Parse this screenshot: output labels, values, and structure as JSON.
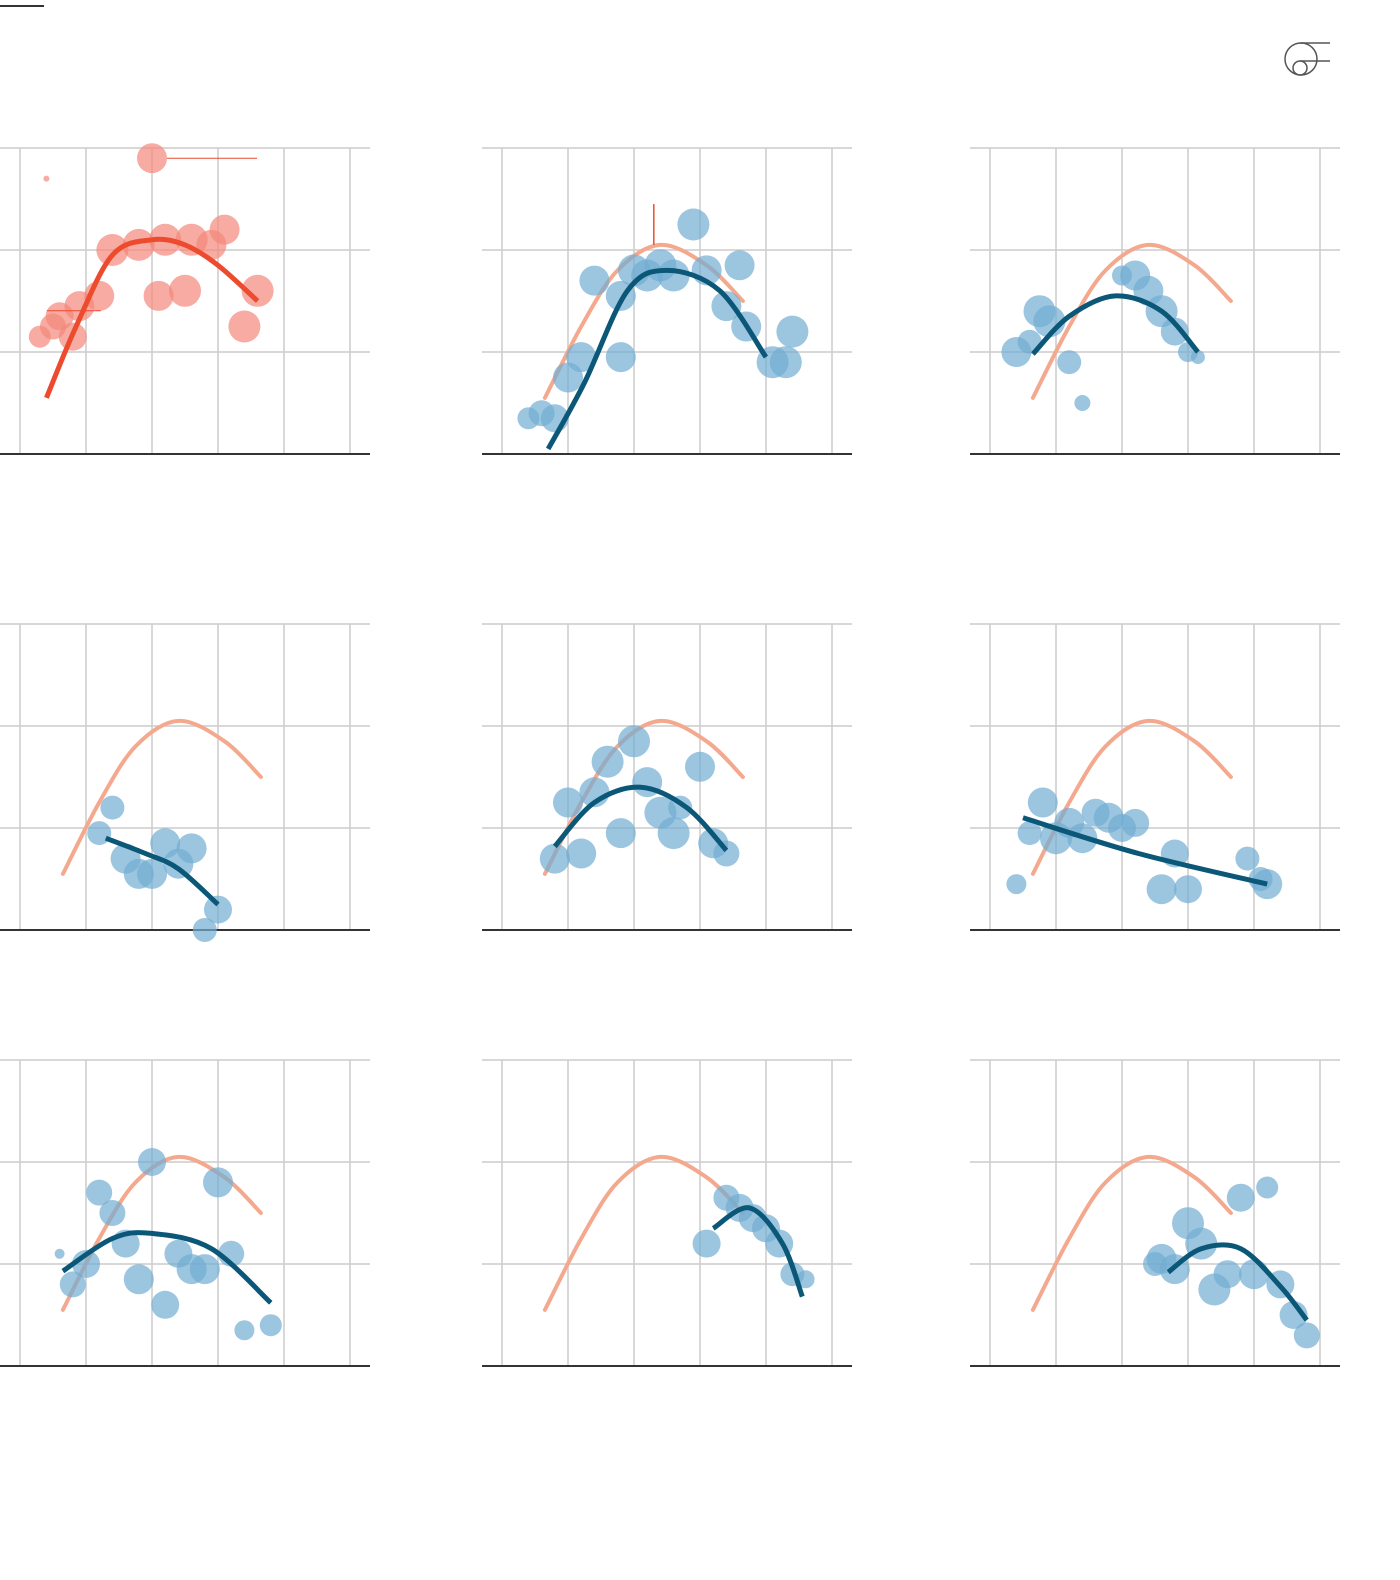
{
  "colors": {
    "background": "#ffffff",
    "grid": "#cccccc",
    "baseline": "#333333",
    "reference_curve": "#f4a98e",
    "reference_curve_dark": "#ec4b2e",
    "reference_points": "#f4877a",
    "series_points": "#72add1",
    "series_curve": "#0b5778",
    "logo_stroke": "#555555"
  },
  "header": {
    "logo_icon": "publisher-logo-icon"
  },
  "chart_data": [
    {
      "type": "scatter",
      "panel": 1,
      "highlight": true,
      "xlim": [
        0,
        10
      ],
      "ylim": [
        0,
        3
      ],
      "grid": true,
      "points": [
        [
          0.8,
          2.7,
          3
        ],
        [
          4.0,
          2.9,
          15
        ],
        [
          1.6,
          1.15,
          14
        ],
        [
          0.6,
          1.15,
          11
        ],
        [
          1.0,
          1.25,
          13
        ],
        [
          1.2,
          1.35,
          14
        ],
        [
          1.8,
          1.45,
          15
        ],
        [
          2.4,
          1.55,
          15
        ],
        [
          2.8,
          2.0,
          16
        ],
        [
          3.6,
          2.05,
          16
        ],
        [
          4.2,
          1.55,
          15
        ],
        [
          4.4,
          2.1,
          16
        ],
        [
          5.0,
          1.6,
          16
        ],
        [
          5.2,
          2.1,
          16
        ],
        [
          5.8,
          2.05,
          15
        ],
        [
          6.2,
          2.2,
          15
        ],
        [
          6.8,
          1.25,
          16
        ],
        [
          7.2,
          1.6,
          16
        ]
      ],
      "fit": [
        [
          0.8,
          0.55
        ],
        [
          1.7,
          1.25
        ],
        [
          2.8,
          1.95
        ],
        [
          4.0,
          2.1
        ],
        [
          5.0,
          2.05
        ],
        [
          6.0,
          1.85
        ],
        [
          7.2,
          1.5
        ]
      ]
    },
    {
      "type": "scatter",
      "panel": 2,
      "xlim": [
        0,
        10
      ],
      "ylim": [
        0,
        3
      ],
      "grid": true,
      "points": [
        [
          0.8,
          0.35,
          11
        ],
        [
          1.2,
          0.4,
          13
        ],
        [
          1.6,
          0.35,
          14
        ],
        [
          2.0,
          0.75,
          15
        ],
        [
          2.4,
          0.95,
          15
        ],
        [
          2.8,
          1.7,
          15
        ],
        [
          3.6,
          0.95,
          15
        ],
        [
          3.6,
          1.55,
          15
        ],
        [
          4.0,
          1.8,
          16
        ],
        [
          4.4,
          1.75,
          16
        ],
        [
          4.8,
          1.85,
          16
        ],
        [
          5.2,
          1.75,
          16
        ],
        [
          5.8,
          2.25,
          16
        ],
        [
          6.2,
          1.8,
          15
        ],
        [
          6.8,
          1.45,
          15
        ],
        [
          7.2,
          1.85,
          15
        ],
        [
          7.4,
          1.25,
          15
        ],
        [
          8.2,
          0.9,
          16
        ],
        [
          8.6,
          0.9,
          16
        ],
        [
          8.8,
          1.2,
          16
        ]
      ],
      "reference": [
        [
          1.3,
          0.55
        ],
        [
          2.4,
          1.25
        ],
        [
          3.5,
          1.8
        ],
        [
          4.8,
          2.05
        ],
        [
          6.2,
          1.85
        ],
        [
          7.3,
          1.5
        ]
      ],
      "fit": [
        [
          1.4,
          0.05
        ],
        [
          2.5,
          0.7
        ],
        [
          3.8,
          1.6
        ],
        [
          5.0,
          1.8
        ],
        [
          6.6,
          1.6
        ],
        [
          8.0,
          0.95
        ]
      ]
    },
    {
      "type": "scatter",
      "panel": 3,
      "xlim": [
        0,
        10
      ],
      "ylim": [
        0,
        3
      ],
      "grid": true,
      "points": [
        [
          0.8,
          1.0,
          15
        ],
        [
          1.2,
          1.1,
          12
        ],
        [
          1.5,
          1.4,
          16
        ],
        [
          1.8,
          1.3,
          16
        ],
        [
          2.4,
          0.9,
          12
        ],
        [
          2.8,
          0.5,
          8
        ],
        [
          4.0,
          1.75,
          10
        ],
        [
          4.4,
          1.75,
          15
        ],
        [
          4.8,
          1.6,
          15
        ],
        [
          5.2,
          1.4,
          16
        ],
        [
          5.6,
          1.2,
          14
        ],
        [
          6.0,
          1.0,
          10
        ],
        [
          6.3,
          0.95,
          7
        ]
      ],
      "reference": [
        [
          1.3,
          0.55
        ],
        [
          2.4,
          1.25
        ],
        [
          3.5,
          1.8
        ],
        [
          4.8,
          2.05
        ],
        [
          6.2,
          1.85
        ],
        [
          7.3,
          1.5
        ]
      ],
      "fit": [
        [
          1.3,
          0.98
        ],
        [
          2.4,
          1.35
        ],
        [
          3.8,
          1.55
        ],
        [
          5.2,
          1.4
        ],
        [
          6.3,
          1.0
        ]
      ]
    },
    {
      "type": "scatter",
      "panel": 4,
      "xlim": [
        0,
        10
      ],
      "ylim": [
        0,
        3
      ],
      "grid": true,
      "points": [
        [
          2.4,
          0.95,
          12
        ],
        [
          2.8,
          1.2,
          12
        ],
        [
          3.2,
          0.7,
          15
        ],
        [
          3.6,
          0.55,
          15
        ],
        [
          4.0,
          0.55,
          15
        ],
        [
          4.4,
          0.85,
          15
        ],
        [
          4.8,
          0.65,
          15
        ],
        [
          5.2,
          0.8,
          15
        ],
        [
          5.6,
          0.0,
          12
        ],
        [
          6.0,
          0.2,
          14
        ]
      ],
      "reference": [
        [
          1.3,
          0.55
        ],
        [
          2.4,
          1.25
        ],
        [
          3.5,
          1.8
        ],
        [
          4.8,
          2.05
        ],
        [
          6.2,
          1.85
        ],
        [
          7.3,
          1.5
        ]
      ],
      "fit": [
        [
          2.6,
          0.9
        ],
        [
          3.8,
          0.75
        ],
        [
          4.8,
          0.6
        ],
        [
          6.0,
          0.25
        ]
      ]
    },
    {
      "type": "scatter",
      "panel": 5,
      "xlim": [
        0,
        10
      ],
      "ylim": [
        0,
        3
      ],
      "grid": true,
      "points": [
        [
          1.6,
          0.7,
          15
        ],
        [
          2.0,
          1.25,
          15
        ],
        [
          2.4,
          0.75,
          15
        ],
        [
          2.8,
          1.35,
          15
        ],
        [
          3.2,
          1.65,
          16
        ],
        [
          3.6,
          0.95,
          15
        ],
        [
          4.0,
          1.85,
          16
        ],
        [
          4.4,
          1.45,
          15
        ],
        [
          4.8,
          1.15,
          16
        ],
        [
          5.2,
          0.95,
          16
        ],
        [
          5.4,
          1.2,
          12
        ],
        [
          6.0,
          1.6,
          15
        ],
        [
          6.4,
          0.85,
          15
        ],
        [
          6.8,
          0.75,
          13
        ]
      ],
      "reference": [
        [
          1.3,
          0.55
        ],
        [
          2.4,
          1.25
        ],
        [
          3.5,
          1.8
        ],
        [
          4.8,
          2.05
        ],
        [
          6.2,
          1.85
        ],
        [
          7.3,
          1.5
        ]
      ],
      "fit": [
        [
          1.6,
          0.82
        ],
        [
          2.8,
          1.25
        ],
        [
          4.2,
          1.4
        ],
        [
          5.6,
          1.2
        ],
        [
          6.8,
          0.78
        ]
      ]
    },
    {
      "type": "scatter",
      "panel": 6,
      "xlim": [
        0,
        10
      ],
      "ylim": [
        0,
        3
      ],
      "grid": true,
      "points": [
        [
          0.8,
          0.45,
          10
        ],
        [
          1.2,
          0.95,
          12
        ],
        [
          1.6,
          1.25,
          15
        ],
        [
          2.0,
          0.9,
          16
        ],
        [
          2.4,
          1.05,
          15
        ],
        [
          2.8,
          0.9,
          15
        ],
        [
          3.2,
          1.15,
          14
        ],
        [
          3.6,
          1.1,
          15
        ],
        [
          4.0,
          1.0,
          14
        ],
        [
          4.4,
          1.05,
          14
        ],
        [
          5.2,
          0.4,
          15
        ],
        [
          5.6,
          0.75,
          14
        ],
        [
          6.0,
          0.4,
          14
        ],
        [
          7.8,
          0.7,
          12
        ],
        [
          8.2,
          0.5,
          12
        ],
        [
          8.4,
          0.45,
          15
        ]
      ],
      "reference": [
        [
          1.3,
          0.55
        ],
        [
          2.4,
          1.25
        ],
        [
          3.5,
          1.8
        ],
        [
          4.8,
          2.05
        ],
        [
          6.2,
          1.85
        ],
        [
          7.3,
          1.5
        ]
      ],
      "fit": [
        [
          1.0,
          1.1
        ],
        [
          4.5,
          0.75
        ],
        [
          8.4,
          0.45
        ]
      ]
    },
    {
      "type": "scatter",
      "panel": 7,
      "xlim": [
        0,
        10
      ],
      "ylim": [
        0,
        3
      ],
      "grid": true,
      "points": [
        [
          1.2,
          1.1,
          5
        ],
        [
          1.6,
          0.8,
          13
        ],
        [
          2.0,
          1.0,
          14
        ],
        [
          2.4,
          1.7,
          13
        ],
        [
          2.8,
          1.5,
          13
        ],
        [
          3.2,
          1.2,
          14
        ],
        [
          3.6,
          0.85,
          15
        ],
        [
          4.0,
          2.0,
          14
        ],
        [
          4.4,
          0.6,
          14
        ],
        [
          4.8,
          1.1,
          14
        ],
        [
          5.2,
          0.95,
          15
        ],
        [
          5.6,
          0.95,
          15
        ],
        [
          6.0,
          1.8,
          15
        ],
        [
          6.4,
          1.1,
          13
        ],
        [
          6.8,
          0.35,
          10
        ],
        [
          7.6,
          0.4,
          11
        ]
      ],
      "reference": [
        [
          1.3,
          0.55
        ],
        [
          2.4,
          1.25
        ],
        [
          3.5,
          1.8
        ],
        [
          4.8,
          2.05
        ],
        [
          6.2,
          1.85
        ],
        [
          7.3,
          1.5
        ]
      ],
      "fit": [
        [
          1.3,
          0.93
        ],
        [
          2.8,
          1.25
        ],
        [
          4.0,
          1.3
        ],
        [
          5.8,
          1.15
        ],
        [
          7.6,
          0.62
        ]
      ]
    },
    {
      "type": "scatter",
      "panel": 8,
      "xlim": [
        0,
        10
      ],
      "ylim": [
        0,
        3
      ],
      "grid": true,
      "points": [
        [
          6.2,
          1.2,
          14
        ],
        [
          6.8,
          1.65,
          13
        ],
        [
          7.2,
          1.55,
          14
        ],
        [
          7.6,
          1.45,
          14
        ],
        [
          8.0,
          1.35,
          14
        ],
        [
          8.4,
          1.2,
          14
        ],
        [
          8.8,
          0.9,
          12
        ],
        [
          9.2,
          0.85,
          9
        ]
      ],
      "reference": [
        [
          1.3,
          0.55
        ],
        [
          2.4,
          1.25
        ],
        [
          3.5,
          1.8
        ],
        [
          4.8,
          2.05
        ],
        [
          6.2,
          1.85
        ],
        [
          7.3,
          1.5
        ]
      ],
      "fit": [
        [
          6.4,
          1.35
        ],
        [
          7.5,
          1.55
        ],
        [
          8.5,
          1.2
        ],
        [
          9.1,
          0.68
        ]
      ]
    },
    {
      "type": "scatter",
      "panel": 9,
      "xlim": [
        0,
        10
      ],
      "ylim": [
        0,
        3
      ],
      "grid": true,
      "points": [
        [
          5.0,
          1.0,
          12
        ],
        [
          5.2,
          1.05,
          15
        ],
        [
          5.6,
          0.95,
          15
        ],
        [
          6.0,
          1.4,
          16
        ],
        [
          6.4,
          1.2,
          16
        ],
        [
          6.8,
          0.75,
          16
        ],
        [
          7.2,
          0.9,
          14
        ],
        [
          7.6,
          1.65,
          14
        ],
        [
          8.0,
          0.9,
          15
        ],
        [
          8.4,
          1.75,
          11
        ],
        [
          8.8,
          0.8,
          14
        ],
        [
          9.2,
          0.5,
          14
        ],
        [
          9.6,
          0.3,
          13
        ]
      ],
      "reference": [
        [
          1.3,
          0.55
        ],
        [
          2.4,
          1.25
        ],
        [
          3.5,
          1.8
        ],
        [
          4.8,
          2.05
        ],
        [
          6.2,
          1.85
        ],
        [
          7.3,
          1.5
        ]
      ],
      "fit": [
        [
          5.4,
          0.92
        ],
        [
          6.4,
          1.15
        ],
        [
          7.6,
          1.15
        ],
        [
          8.8,
          0.78
        ],
        [
          9.6,
          0.45
        ]
      ]
    }
  ]
}
